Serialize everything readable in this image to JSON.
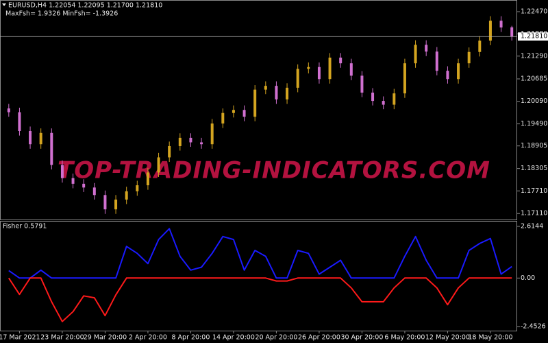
{
  "chart_data": [
    {
      "type": "candlestick",
      "title": "EURUSD,H4  1.22054 1.22095 1.21700 1.21810",
      "subtitle": "MaxFsh= 1.9326 MinFsh= -1.3926",
      "categories": [
        null,
        "17 Mar 2021",
        null,
        null,
        null,
        "23 Mar 20:00",
        null,
        null,
        null,
        "29 Mar 20:00",
        null,
        null,
        null,
        "2 Apr 20:00",
        null,
        null,
        null,
        "8 Apr 20:00",
        null,
        null,
        null,
        "14 Apr 20:00",
        null,
        null,
        null,
        "20 Apr 20:00",
        null,
        null,
        null,
        "26 Apr 20:00",
        null,
        null,
        null,
        "30 Apr 20:00",
        null,
        null,
        null,
        "6 May 20:00",
        null,
        null,
        null,
        "12 May 20:00",
        null,
        null,
        null,
        "18 May 20:00",
        null,
        null
      ],
      "open": [
        1.199,
        1.198,
        1.193,
        1.1895,
        1.1925,
        1.184,
        1.1805,
        1.179,
        1.178,
        1.176,
        1.1722,
        1.1748,
        1.177,
        1.1786,
        1.182,
        1.186,
        1.189,
        1.1912,
        1.19,
        1.1895,
        1.195,
        1.1978,
        1.1986,
        1.1968,
        1.204,
        1.205,
        1.2014,
        1.2045,
        1.2095,
        1.21,
        1.2068,
        1.2125,
        1.211,
        1.2077,
        1.2032,
        1.201,
        1.2,
        1.203,
        1.211,
        1.2159,
        1.2141,
        1.209,
        1.2068,
        1.211,
        1.214,
        1.217,
        1.2223,
        1.22054
      ],
      "high": [
        1.2002,
        1.1992,
        1.1942,
        1.1937,
        1.1937,
        1.1852,
        1.1817,
        1.1802,
        1.1792,
        1.1772,
        1.176,
        1.1782,
        1.1798,
        1.1832,
        1.1872,
        1.1902,
        1.1924,
        1.1924,
        1.1912,
        1.1962,
        1.199,
        1.1998,
        1.1998,
        1.2052,
        1.2062,
        1.2062,
        1.2057,
        1.2107,
        1.2112,
        1.2112,
        1.2137,
        1.2137,
        1.2122,
        1.2089,
        1.2044,
        1.2022,
        1.2042,
        1.2122,
        1.2171,
        1.2171,
        1.2153,
        1.2102,
        1.2122,
        1.2152,
        1.2182,
        1.2235,
        1.2235,
        1.22095
      ],
      "low": [
        1.1968,
        1.1918,
        1.1883,
        1.1883,
        1.1828,
        1.1793,
        1.1778,
        1.1768,
        1.1748,
        1.171,
        1.171,
        1.1736,
        1.1758,
        1.1774,
        1.1808,
        1.1848,
        1.1878,
        1.1888,
        1.1883,
        1.1883,
        1.1938,
        1.1966,
        1.1956,
        1.1956,
        1.2028,
        1.2002,
        1.2002,
        1.2033,
        1.2083,
        1.2056,
        1.2056,
        1.2098,
        1.2065,
        1.202,
        1.1998,
        1.1988,
        1.1988,
        1.2018,
        1.2098,
        1.2129,
        1.2078,
        1.2056,
        1.2056,
        1.2098,
        1.2128,
        1.2158,
        1.2193,
        1.217
      ],
      "close": [
        1.198,
        1.193,
        1.1895,
        1.1925,
        1.184,
        1.1805,
        1.179,
        1.178,
        1.176,
        1.1722,
        1.1748,
        1.177,
        1.1786,
        1.182,
        1.186,
        1.189,
        1.1912,
        1.19,
        1.1895,
        1.195,
        1.1978,
        1.1986,
        1.1968,
        1.204,
        1.205,
        1.2014,
        1.2045,
        1.2095,
        1.21,
        1.2068,
        1.2125,
        1.211,
        1.2077,
        1.2032,
        1.201,
        1.2,
        1.203,
        1.211,
        1.2159,
        1.2141,
        1.209,
        1.2068,
        1.211,
        1.214,
        1.217,
        1.2223,
        1.2205,
        1.2181
      ],
      "up_color": "#d4a520",
      "down_color": "#d070d0",
      "ylim": [
        1.1695,
        1.2278
      ],
      "yticks": [
        {
          "value": 1.2247,
          "label": "1.22470"
        },
        {
          "value": 1.2188,
          "label": "1.21880"
        },
        {
          "value": 1.2129,
          "label": "1.21290"
        },
        {
          "value": 1.20685,
          "label": "1.20685"
        },
        {
          "value": 1.2009,
          "label": "1.20090"
        },
        {
          "value": 1.1949,
          "label": "1.19490"
        },
        {
          "value": 1.18905,
          "label": "1.18905"
        },
        {
          "value": 1.18305,
          "label": "1.18305"
        },
        {
          "value": 1.1771,
          "label": "1.17710"
        },
        {
          "value": 1.1711,
          "label": "1.17110"
        }
      ],
      "last_price": {
        "value": 1.2181,
        "label": "1.21810"
      }
    },
    {
      "type": "line",
      "title": "Fisher 0.5791",
      "series": [
        {
          "color": "#1a1aff",
          "values": [
            0.38,
            0,
            0,
            0.4,
            0,
            0,
            0,
            0,
            0,
            0,
            0,
            1.6,
            1.25,
            0.73,
            1.95,
            2.5,
            1.1,
            0.4,
            0.55,
            1.25,
            2.1,
            1.95,
            0.4,
            1.4,
            1.1,
            0,
            0,
            1.4,
            1.25,
            0.2,
            0.55,
            0.9,
            0,
            0,
            0,
            0,
            0,
            1.1,
            2.1,
            0.9,
            0,
            0,
            0,
            1.4,
            1.75,
            2.0,
            0.2,
            0.5791
          ]
        },
        {
          "color": "#ff1a1a",
          "values": [
            0,
            -0.83,
            0,
            0,
            -1.2,
            -2.2,
            -1.7,
            -0.9,
            -1.0,
            -1.9,
            -0.85,
            0,
            0,
            0,
            0,
            0,
            0,
            0,
            0,
            0,
            0,
            0,
            0,
            0,
            0,
            -0.15,
            -0.15,
            0,
            0,
            0,
            0,
            0,
            -0.5,
            -1.2,
            -1.2,
            -1.2,
            -0.5,
            0,
            0,
            0,
            -0.5,
            -1.35,
            -0.5,
            0,
            0,
            0,
            0,
            0
          ]
        }
      ],
      "ylim": [
        -2.661,
        2.892
      ],
      "yticks": [
        {
          "value": 2.6144,
          "label": "2.6144"
        },
        {
          "value": 0,
          "label": "0.00"
        },
        {
          "value": -2.4526,
          "label": "-2.4526"
        }
      ]
    }
  ],
  "watermark": "TOP-TRADING-INDICATORS.COM"
}
